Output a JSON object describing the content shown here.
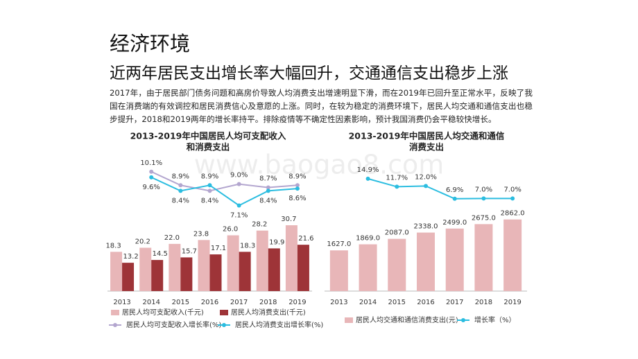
{
  "title": "经济环境",
  "subtitle": "近两年居民支出增长率大幅回升，交通通信支出稳步上涨",
  "paragraph": "2017年，由于居民部门债务问题和高房价导致人均消费支出增速明显下滑，而在2019年已回升至正常水平，反映了我国在消费端的有效调控和居民消费信心及意愿的上涨。同时，在较为稳定的消费环境下，居民人均交通和通信支出也稳步提升，2018和2019两年的增长率持平。排除疫情等不确定性因素影响，预计我国消费仍会平稳较快增长。",
  "watermark": "www.baogao8.com",
  "chart_data": [
    {
      "type": "bar",
      "title": [
        "2013-2019年中国居民人均可支配收入",
        "和消费支出"
      ],
      "categories": [
        "2013",
        "2014",
        "2015",
        "2016",
        "2017",
        "2018",
        "2019"
      ],
      "ylim": [
        0,
        63
      ],
      "y2lim": [
        -0.5,
        11.5
      ],
      "series": [
        {
          "name": "居民人均可支配收入(千元)",
          "kind": "bar",
          "color": "#e8b6b8",
          "values": [
            18.3,
            20.2,
            22.0,
            23.8,
            26.0,
            28.2,
            30.7
          ],
          "value_labels": [
            "18.3",
            "20.2",
            "22.0",
            "23.8",
            "26.0",
            "28.2",
            "30.7"
          ]
        },
        {
          "name": "居民人均消费支出(千元)",
          "kind": "bar",
          "color": "#9e3438",
          "values": [
            13.2,
            14.5,
            15.7,
            17.1,
            18.3,
            19.9,
            21.6
          ],
          "value_labels": [
            "13.2",
            "14.5",
            "15.7",
            "17.1",
            "18.3",
            "19.9",
            "21.6"
          ]
        },
        {
          "name": "居民人均可支配收入增长率(%)",
          "kind": "line",
          "axis": "y2",
          "color": "#b3a6cf",
          "values": [
            null,
            10.1,
            8.9,
            8.4,
            9.0,
            8.7,
            8.9
          ],
          "value_labels": [
            null,
            "10.1%",
            "8.9%",
            "8.4%",
            "9.0%",
            "8.7%",
            "8.9%"
          ]
        },
        {
          "name": "居民人均消费支出增长率(%)",
          "kind": "line",
          "axis": "y2",
          "color": "#2bbde0",
          "values": [
            null,
            9.6,
            8.4,
            8.9,
            7.1,
            8.4,
            8.6
          ],
          "value_labels": [
            null,
            "9.6%",
            "8.4%",
            "8.9%",
            "7.1%",
            "8.4%",
            "8.6%"
          ]
        }
      ]
    },
    {
      "type": "bar",
      "title": [
        "2013-2019年中国居民人均交通和通信",
        "消费支出"
      ],
      "categories": [
        "2013",
        "2014",
        "2015",
        "2016",
        "2017",
        "2018",
        "2019"
      ],
      "ylim": [
        0,
        5400
      ],
      "y2lim": [
        -30,
        24
      ],
      "series": [
        {
          "name": "居民人均交通和通信消费支出(元)",
          "kind": "bar",
          "color": "#e8b6b8",
          "values": [
            1627,
            1869,
            2087,
            2338,
            2499,
            2675,
            2862
          ],
          "value_labels": [
            "1627.0",
            "1869.0",
            "2087.0",
            "2338.0",
            "2499.0",
            "2675.0",
            "2862.0"
          ]
        },
        {
          "name": "增长率（%）",
          "kind": "line",
          "axis": "y2",
          "color": "#2bbde0",
          "values": [
            null,
            14.9,
            11.7,
            12.0,
            6.9,
            7.0,
            7.0
          ],
          "value_labels": [
            null,
            "14.9%",
            "11.7%",
            "12.0%",
            "6.9%",
            "7.0%",
            "7.0%"
          ]
        }
      ]
    }
  ]
}
